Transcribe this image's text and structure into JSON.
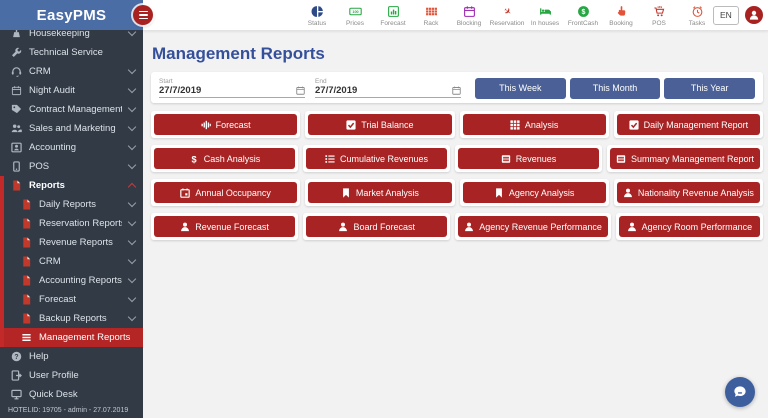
{
  "app": {
    "name": "EasyPMS",
    "language": "EN"
  },
  "colors": {
    "accent_red": "#a82424",
    "active_red": "#b42525",
    "accent_blue": "#4a6096",
    "title_blue": "#35509b",
    "sidebar_bg": "#323a46",
    "header_blue": "#4b6da6"
  },
  "topbar": {
    "items": [
      {
        "label": "Status",
        "icon": "pie",
        "color": "#2d4a86"
      },
      {
        "label": "Prices",
        "icon": "banknote",
        "color": "#27a744"
      },
      {
        "label": "Forecast",
        "icon": "barchart",
        "color": "#27a744"
      },
      {
        "label": "Rack",
        "icon": "grid",
        "color": "#e2543a"
      },
      {
        "label": "Blocking",
        "icon": "calendar",
        "color": "#9c27b0"
      },
      {
        "label": "Reservation",
        "icon": "plane",
        "color": "#c0392b"
      },
      {
        "label": "In houses",
        "icon": "bed",
        "color": "#27a744"
      },
      {
        "label": "FrontCash",
        "icon": "dollar-circle",
        "color": "#27a744"
      },
      {
        "label": "Booking",
        "icon": "hand",
        "color": "#e2543a"
      },
      {
        "label": "POS",
        "icon": "cart",
        "color": "#c0392b"
      },
      {
        "label": "Tasks",
        "icon": "alarm",
        "color": "#e2543a"
      }
    ]
  },
  "sidebar": {
    "items": [
      {
        "label": "Housekeeping",
        "icon": "broom",
        "chevron": "down"
      },
      {
        "label": "Technical Service",
        "icon": "wrench",
        "chevron": "none"
      },
      {
        "label": "CRM",
        "icon": "headset",
        "chevron": "down"
      },
      {
        "label": "Night Audit",
        "icon": "calendar",
        "chevron": "down"
      },
      {
        "label": "Contract Management",
        "icon": "tag",
        "chevron": "down"
      },
      {
        "label": "Sales and Marketing",
        "icon": "people",
        "chevron": "down"
      },
      {
        "label": "Accounting",
        "icon": "idcard",
        "chevron": "down"
      },
      {
        "label": "POS",
        "icon": "device",
        "chevron": "down"
      },
      {
        "label": "Reports",
        "icon": "file",
        "chevron": "up",
        "expanded": true,
        "children": [
          {
            "label": "Daily Reports",
            "icon": "file",
            "chevron": "down"
          },
          {
            "label": "Reservation Reports",
            "icon": "file",
            "chevron": "down"
          },
          {
            "label": "Revenue Reports",
            "icon": "file",
            "chevron": "down"
          },
          {
            "label": "CRM",
            "icon": "file",
            "chevron": "down"
          },
          {
            "label": "Accounting Reports",
            "icon": "file",
            "chevron": "down"
          },
          {
            "label": "Forecast",
            "icon": "file",
            "chevron": "down"
          },
          {
            "label": "Backup Reports",
            "icon": "file",
            "chevron": "down"
          },
          {
            "label": "Management Reports",
            "icon": "menu",
            "chevron": "none",
            "active": true
          }
        ]
      },
      {
        "label": "Help",
        "icon": "help",
        "chevron": "none"
      },
      {
        "label": "User Profile",
        "icon": "profile",
        "chevron": "none"
      },
      {
        "label": "Quick Desk",
        "icon": "monitor",
        "chevron": "none"
      }
    ],
    "footer": "HOTELID: 19705 - admin - 27.07.2019"
  },
  "main": {
    "title": "Management Reports",
    "filters": {
      "start_label": "Start",
      "start_value": "27/7/2019",
      "end_label": "End",
      "end_value": "27/7/2019",
      "quick_ranges": [
        "This Week",
        "This Month",
        "This Year"
      ]
    },
    "report_rows": [
      [
        {
          "label": "Forecast",
          "icon": "waveform"
        },
        {
          "label": "Trial Balance",
          "icon": "checkbox"
        },
        {
          "label": "Analysis",
          "icon": "grid9"
        },
        {
          "label": "Daily Management Report",
          "icon": "checkbox"
        }
      ],
      [
        {
          "label": "Cash Analysis",
          "icon": "dollar"
        },
        {
          "label": "Cumulative Revenues",
          "icon": "listul"
        },
        {
          "label": "Revenues",
          "icon": "lines"
        },
        {
          "label": "Summary Management Report",
          "icon": "lines"
        }
      ],
      [
        {
          "label": "Annual Occupancy",
          "icon": "calendar-small"
        },
        {
          "label": "Market Analysis",
          "icon": "bookmark"
        },
        {
          "label": "Agency Analysis",
          "icon": "bookmark"
        },
        {
          "label": "Nationality Revenue Analysis",
          "icon": "person"
        }
      ],
      [
        {
          "label": "Revenue Forecast",
          "icon": "person"
        },
        {
          "label": "Board Forecast",
          "icon": "person"
        },
        {
          "label": "Agency Revenue Performance",
          "icon": "person"
        },
        {
          "label": "Agency Room Performance",
          "icon": "person"
        }
      ]
    ]
  }
}
